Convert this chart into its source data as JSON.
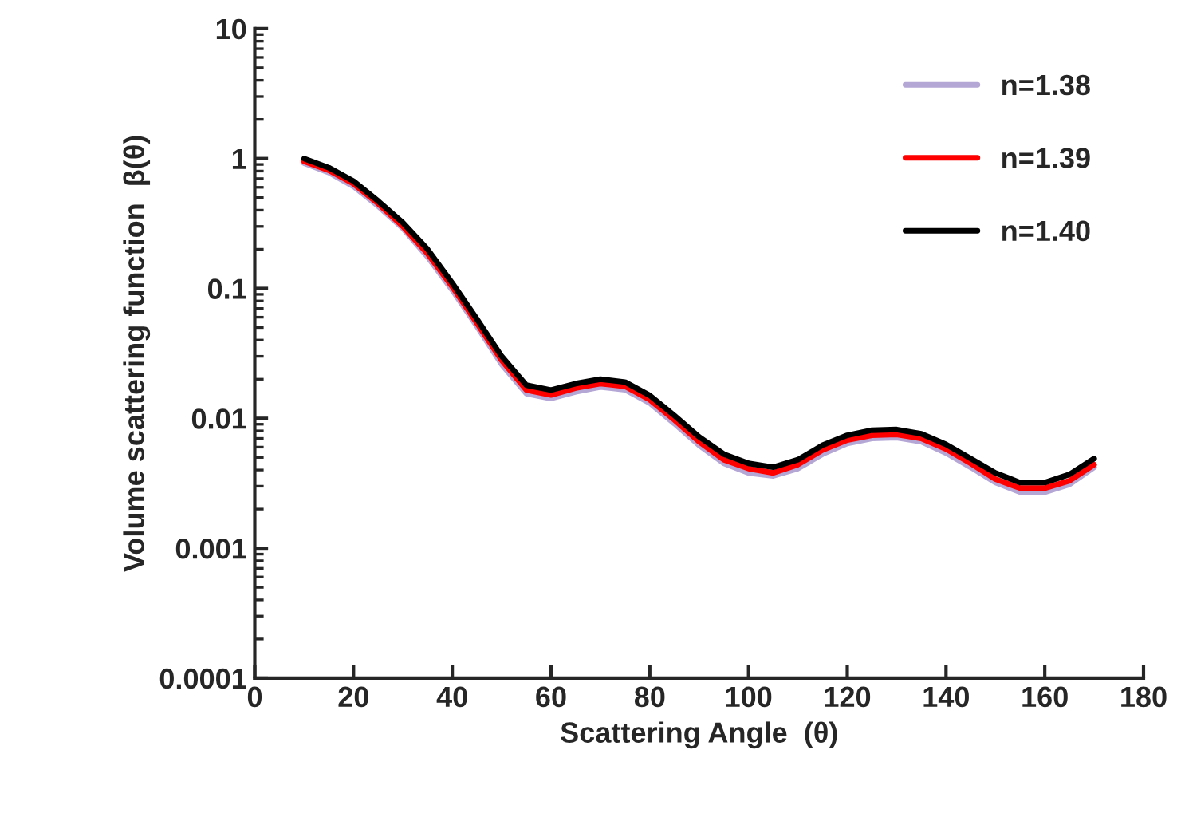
{
  "chart_data": {
    "type": "line",
    "xlabel": "Scattering Angle  (θ)",
    "ylabel": "Volume scattering function  β(θ)",
    "x": [
      10,
      15,
      20,
      25,
      30,
      35,
      40,
      45,
      50,
      55,
      60,
      65,
      70,
      75,
      80,
      85,
      90,
      95,
      100,
      105,
      110,
      115,
      120,
      125,
      130,
      135,
      140,
      145,
      150,
      155,
      160,
      165,
      170
    ],
    "series": [
      {
        "name": "n=1.38",
        "color": "#b4a7d6",
        "values": [
          0.92,
          0.78,
          0.61,
          0.43,
          0.29,
          0.175,
          0.097,
          0.051,
          0.026,
          0.0155,
          0.0142,
          0.016,
          0.0174,
          0.0166,
          0.0131,
          0.0091,
          0.0062,
          0.0045,
          0.0038,
          0.0036,
          0.0041,
          0.0053,
          0.0064,
          0.007,
          0.0071,
          0.0066,
          0.0054,
          0.0042,
          0.0032,
          0.0027,
          0.0027,
          0.0031,
          0.0042
        ]
      },
      {
        "name": "n=1.39",
        "color": "#ff0000",
        "values": [
          0.95,
          0.81,
          0.64,
          0.45,
          0.3,
          0.185,
          0.103,
          0.054,
          0.028,
          0.0165,
          0.0151,
          0.0171,
          0.0185,
          0.0176,
          0.0139,
          0.0097,
          0.0066,
          0.0048,
          0.0041,
          0.0038,
          0.0044,
          0.0057,
          0.0068,
          0.0074,
          0.0075,
          0.007,
          0.0058,
          0.0045,
          0.0034,
          0.0029,
          0.0029,
          0.0033,
          0.0044
        ]
      },
      {
        "name": "n=1.40",
        "color": "#000000",
        "values": [
          1.0,
          0.85,
          0.67,
          0.47,
          0.32,
          0.2,
          0.11,
          0.058,
          0.03,
          0.018,
          0.0165,
          0.0185,
          0.02,
          0.019,
          0.015,
          0.0105,
          0.0072,
          0.0053,
          0.0045,
          0.0042,
          0.0048,
          0.0062,
          0.0074,
          0.0081,
          0.0082,
          0.0076,
          0.0063,
          0.0049,
          0.0038,
          0.0032,
          0.0032,
          0.0037,
          0.0049
        ]
      }
    ],
    "log": "y",
    "xlim": [
      0,
      180
    ],
    "xticks": [
      0,
      20,
      40,
      60,
      80,
      100,
      120,
      140,
      160,
      180
    ],
    "ylim": [
      0.0001,
      10
    ],
    "yticks": [
      0.0001,
      0.001,
      0.01,
      0.1,
      1,
      10
    ],
    "legend": "top right",
    "grid": false,
    "marker": "none",
    "line_style": "solid"
  }
}
